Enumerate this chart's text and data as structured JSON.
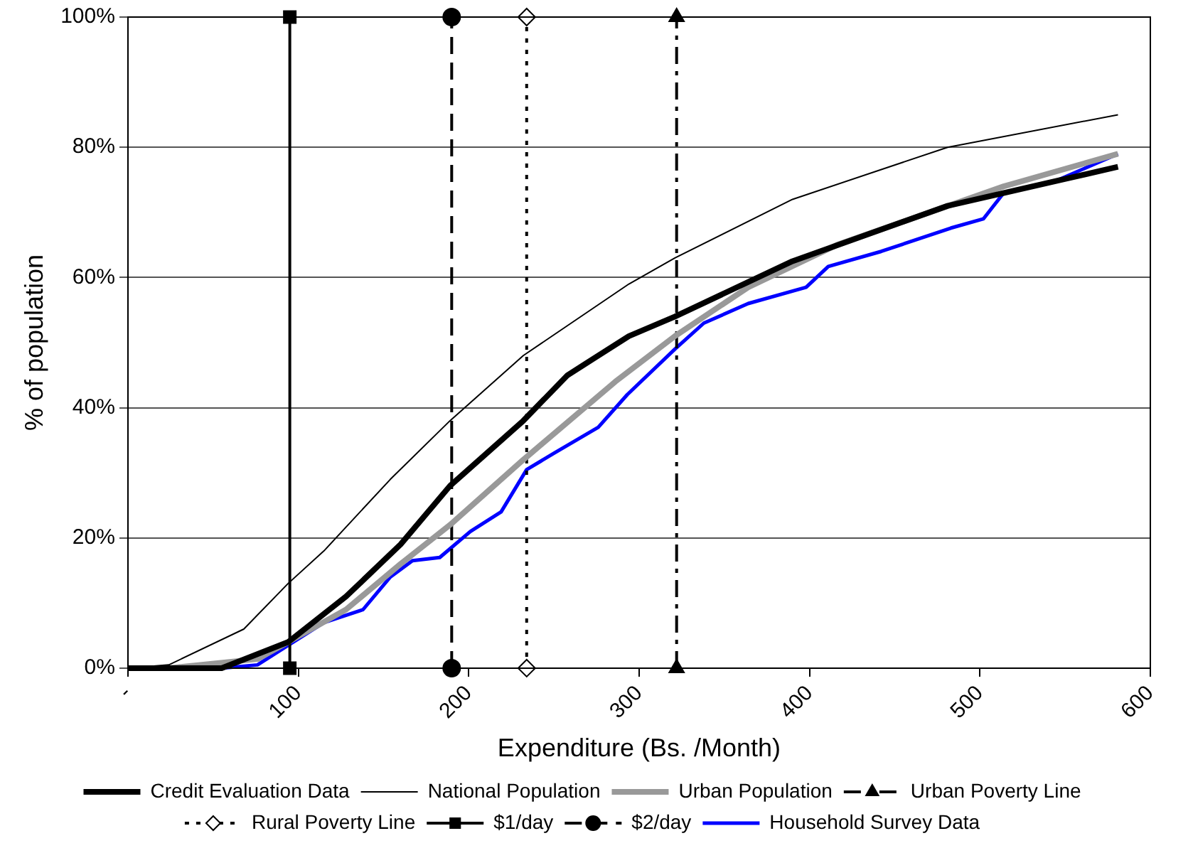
{
  "chart_data": {
    "type": "line",
    "xlabel": "Expenditure (Bs. /Month)",
    "ylabel": "% of population",
    "xlim": [
      0,
      600
    ],
    "xticks": [
      {
        "value": 0,
        "label": "-"
      },
      100,
      200,
      300,
      400,
      500,
      600
    ],
    "ylim": [
      0,
      100
    ],
    "yticks": [
      {
        "value": 0,
        "label": "0%"
      },
      {
        "value": 20,
        "label": "20%"
      },
      {
        "value": 40,
        "label": "40%"
      },
      {
        "value": 60,
        "label": "60%"
      },
      {
        "value": 80,
        "label": "80%"
      },
      {
        "value": 100,
        "label": "100%"
      }
    ],
    "grid": "y",
    "legend": "bottom",
    "marker": "none",
    "line_style": "solid",
    "series": [
      {
        "name": "Credit Evaluation Data",
        "color": "#000000",
        "x": [
          0,
          55,
          94,
          128,
          160,
          189,
          232,
          258,
          294,
          321,
          390,
          481,
          581
        ],
        "values": [
          0,
          0,
          4,
          11,
          19,
          28,
          38,
          45,
          51,
          54,
          62.5,
          71,
          77
        ]
      },
      {
        "name": "National Population",
        "color": "#000000",
        "x": [
          0,
          24,
          68,
          94,
          115,
          154,
          189,
          232,
          294,
          321,
          390,
          481,
          581
        ],
        "values": [
          0,
          0.5,
          6,
          13,
          18,
          29,
          38,
          48,
          59,
          63,
          72,
          80,
          85
        ]
      },
      {
        "name": "Urban Population",
        "color": "#999999",
        "x": [
          0,
          24,
          76,
          94,
          128,
          160,
          189,
          232,
          286,
          321,
          364,
          416,
          514,
          581
        ],
        "values": [
          0,
          0,
          1.4,
          4,
          9,
          16,
          22,
          32,
          44,
          51,
          58.5,
          65,
          74,
          79
        ]
      },
      {
        "name": "Urban Poverty Line",
        "color": "#000000",
        "x": [
          322,
          322
        ],
        "values": [
          0,
          100
        ],
        "marker": "triangle",
        "line_style": "dashdot"
      },
      {
        "name": "Rural Poverty Line",
        "color": "#000000",
        "x": [
          234,
          234
        ],
        "values": [
          0,
          100
        ],
        "marker": "diamond",
        "line_style": "dotted"
      },
      {
        "name": "$1/day",
        "color": "#000000",
        "x": [
          95,
          95
        ],
        "values": [
          0,
          100
        ],
        "marker": "square",
        "line_style": "solid"
      },
      {
        "name": "$2/day",
        "color": "#000000",
        "x": [
          190,
          190
        ],
        "values": [
          0,
          100
        ],
        "marker": "circle",
        "line_style": "dashed"
      },
      {
        "name": "Household Survey Data",
        "color": "#0000ff",
        "x": [
          55,
          76,
          94,
          115,
          138,
          154,
          167,
          183,
          201,
          219,
          234,
          250,
          276,
          293,
          321,
          338,
          364,
          398,
          411,
          442,
          483,
          502,
          514,
          546,
          581
        ],
        "values": [
          0,
          0.5,
          3.5,
          7,
          9,
          14,
          16.5,
          17,
          21,
          24,
          30.5,
          33,
          37,
          42,
          49,
          53,
          56,
          58.5,
          61.7,
          64,
          67.6,
          69,
          73,
          75,
          79
        ]
      }
    ]
  }
}
